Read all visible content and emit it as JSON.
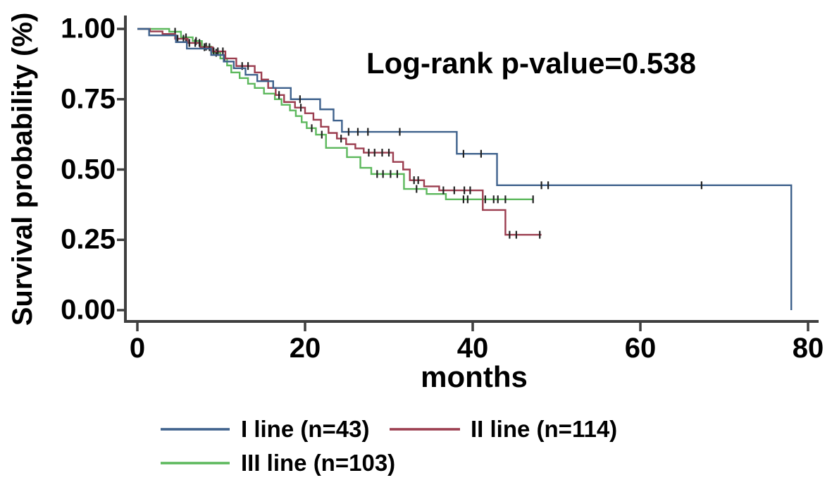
{
  "page": {
    "background": "#ffffff"
  },
  "chart_data": {
    "type": "line",
    "subtype": "kaplan-meier-step",
    "title": "",
    "annotation": "Log-rank p-value=0.538",
    "xlabel": "months",
    "ylabel": "Survival probability (%)",
    "xlim": [
      0,
      80
    ],
    "ylim": [
      0,
      1
    ],
    "xticks": [
      0,
      20,
      40,
      60,
      80
    ],
    "ytick_labels": [
      "1.00",
      "0.75",
      "0.50",
      "0.25",
      "0.00"
    ],
    "ytick_values": [
      1.0,
      0.75,
      0.5,
      0.25,
      0.0
    ],
    "grid": false,
    "legend_position": "bottom",
    "axis_color": "#3f3f3f",
    "censor_tick_color": "#222222",
    "series": [
      {
        "name": "I line (n=43)",
        "n": 43,
        "color": "#3e618c",
        "points": [
          [
            0,
            1.0
          ],
          [
            1.4,
            0.977
          ],
          [
            4.6,
            0.953
          ],
          [
            5.9,
            0.93
          ],
          [
            8.8,
            0.907
          ],
          [
            10.3,
            0.884
          ],
          [
            11.5,
            0.86
          ],
          [
            12.9,
            0.837
          ],
          [
            14.3,
            0.814
          ],
          [
            16.2,
            0.79
          ],
          [
            18.3,
            0.75
          ],
          [
            21.8,
            0.714
          ],
          [
            23.4,
            0.674
          ],
          [
            24.4,
            0.634
          ],
          [
            38.1,
            0.556
          ],
          [
            42.9,
            0.444
          ]
        ],
        "censor_months": [
          19.4,
          25.2,
          26.3,
          27.5,
          31.3,
          38.9,
          41.0,
          48.2,
          49.0,
          67.3
        ],
        "end_month": 78,
        "drops_to_zero_at_end": true
      },
      {
        "name": "II line (n=114)",
        "n": 114,
        "color": "#9b3d4f",
        "points": [
          [
            0,
            1.0
          ],
          [
            1.5,
            0.991
          ],
          [
            3.0,
            0.982
          ],
          [
            4.5,
            0.965
          ],
          [
            6.0,
            0.95
          ],
          [
            7.5,
            0.935
          ],
          [
            9.0,
            0.92
          ],
          [
            10.5,
            0.895
          ],
          [
            11.8,
            0.868
          ],
          [
            14.0,
            0.845
          ],
          [
            14.8,
            0.82
          ],
          [
            15.6,
            0.79
          ],
          [
            16.5,
            0.765
          ],
          [
            17.5,
            0.74
          ],
          [
            18.8,
            0.72
          ],
          [
            20.0,
            0.7
          ],
          [
            21.0,
            0.677
          ],
          [
            21.9,
            0.652
          ],
          [
            22.8,
            0.63
          ],
          [
            23.8,
            0.61
          ],
          [
            24.9,
            0.59
          ],
          [
            26.0,
            0.575
          ],
          [
            27.0,
            0.56
          ],
          [
            30.5,
            0.527
          ],
          [
            31.7,
            0.5
          ],
          [
            32.5,
            0.462
          ],
          [
            34.2,
            0.44
          ],
          [
            36.0,
            0.426
          ],
          [
            41.2,
            0.356
          ],
          [
            43.9,
            0.268
          ]
        ],
        "censor_months": [
          4.8,
          5.5,
          6.2,
          6.9,
          7.4,
          8.0,
          8.6,
          9.1,
          9.6,
          10.2,
          12.5,
          13.2,
          16.9,
          19.5,
          24.3,
          27.6,
          28.3,
          29.2,
          30.0,
          33.0,
          33.5,
          36.5,
          37.8,
          39.0,
          39.7,
          44.4,
          45.2,
          48.0
        ],
        "end_month": 48.2,
        "drops_to_zero_at_end": false
      },
      {
        "name": "III line (n=103)",
        "n": 103,
        "color": "#5cb85c",
        "points": [
          [
            0,
            1.0
          ],
          [
            3.8,
            0.99
          ],
          [
            5.2,
            0.97
          ],
          [
            6.6,
            0.957
          ],
          [
            7.7,
            0.937
          ],
          [
            8.8,
            0.915
          ],
          [
            9.9,
            0.895
          ],
          [
            10.7,
            0.87
          ],
          [
            11.2,
            0.845
          ],
          [
            12.2,
            0.825
          ],
          [
            13.2,
            0.805
          ],
          [
            14.0,
            0.79
          ],
          [
            15.1,
            0.77
          ],
          [
            16.4,
            0.75
          ],
          [
            17.2,
            0.73
          ],
          [
            18.2,
            0.71
          ],
          [
            18.9,
            0.69
          ],
          [
            19.6,
            0.668
          ],
          [
            20.2,
            0.647
          ],
          [
            21.3,
            0.624
          ],
          [
            22.5,
            0.577
          ],
          [
            25.0,
            0.544
          ],
          [
            26.6,
            0.506
          ],
          [
            27.9,
            0.484
          ],
          [
            31.8,
            0.431
          ],
          [
            34.5,
            0.413
          ],
          [
            36.8,
            0.394
          ]
        ],
        "censor_months": [
          4.5,
          5.8,
          7.0,
          8.2,
          9.4,
          10.4,
          20.8,
          22.0,
          28.6,
          29.3,
          30.2,
          31.0,
          33.3,
          38.9,
          39.4,
          41.5,
          42.5,
          43.0,
          43.9,
          47.2
        ],
        "end_month": 47.2,
        "drops_to_zero_at_end": false
      }
    ]
  }
}
